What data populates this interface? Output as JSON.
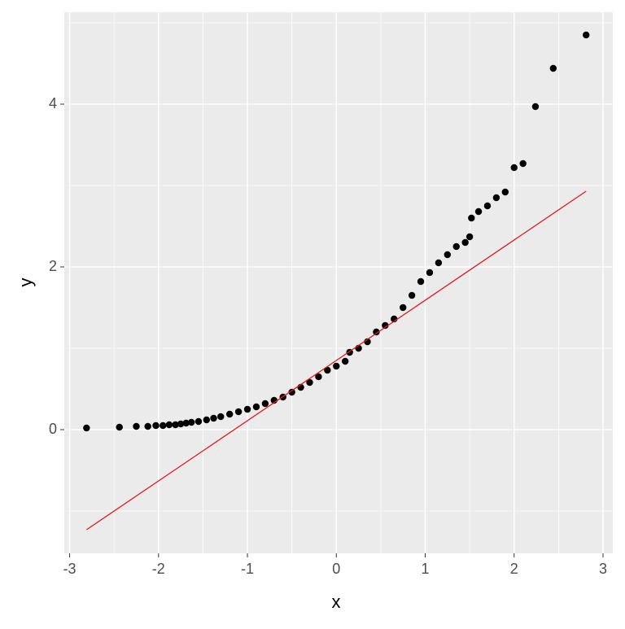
{
  "chart_data": {
    "type": "scatter",
    "x_label": "x",
    "y_label": "y",
    "x": [
      -2.81,
      -2.44,
      -2.25,
      -2.12,
      -2.03,
      -1.95,
      -1.88,
      -1.81,
      -1.75,
      -1.69,
      -1.63,
      -1.55,
      -1.46,
      -1.38,
      -1.3,
      -1.2,
      -1.1,
      -1.0,
      -0.9,
      -0.8,
      -0.7,
      -0.6,
      -0.5,
      -0.4,
      -0.3,
      -0.2,
      -0.1,
      0.0,
      0.1,
      0.15,
      0.25,
      0.35,
      0.45,
      0.55,
      0.65,
      0.75,
      0.85,
      0.95,
      1.05,
      1.15,
      1.25,
      1.35,
      1.45,
      1.5,
      1.52,
      1.6,
      1.7,
      1.8,
      1.9,
      2.0,
      2.1,
      2.24,
      2.44,
      2.81
    ],
    "values": [
      0.02,
      0.03,
      0.04,
      0.04,
      0.05,
      0.05,
      0.06,
      0.06,
      0.07,
      0.08,
      0.09,
      0.1,
      0.12,
      0.14,
      0.16,
      0.19,
      0.22,
      0.25,
      0.28,
      0.32,
      0.36,
      0.4,
      0.46,
      0.52,
      0.58,
      0.65,
      0.73,
      0.78,
      0.84,
      0.95,
      1.0,
      1.08,
      1.2,
      1.28,
      1.36,
      1.5,
      1.65,
      1.82,
      1.93,
      2.05,
      2.15,
      2.25,
      2.3,
      2.37,
      2.6,
      2.68,
      2.75,
      2.85,
      2.92,
      3.22,
      3.27,
      3.97,
      4.44,
      4.85
    ],
    "color": "#000000",
    "reference_line": {
      "x": [
        -2.81,
        2.81
      ],
      "y": [
        -1.23,
        2.93
      ],
      "color": "#e31a1c"
    },
    "xlim": [
      -3.06,
      3.11
    ],
    "ylim": [
      -1.52,
      5.13
    ],
    "xticks": [
      -3,
      -2,
      -1,
      0,
      1,
      2,
      3
    ],
    "yticks": [
      0,
      2,
      4
    ],
    "x_minor_ticks": [
      -2.5,
      -1.5,
      -0.5,
      0.5,
      1.5,
      2.5
    ],
    "y_minor_ticks": [
      -1,
      1,
      3,
      5
    ],
    "grid": true
  }
}
